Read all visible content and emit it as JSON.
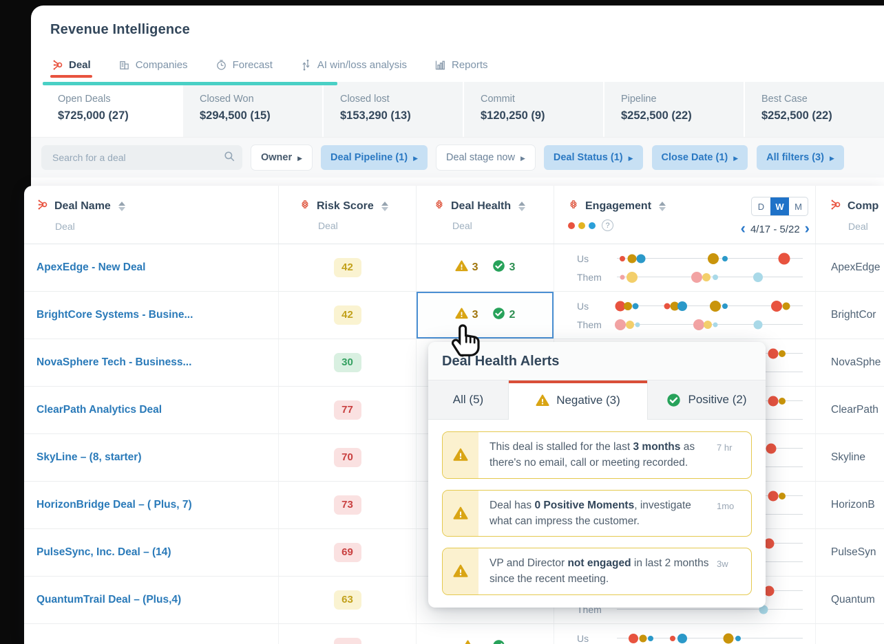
{
  "app": {
    "title": "Revenue Intelligence"
  },
  "nav": {
    "tabs": [
      {
        "label": "Deal",
        "icon": "sprocket",
        "active": true
      },
      {
        "label": "Companies",
        "icon": "building",
        "active": false
      },
      {
        "label": "Forecast",
        "icon": "clock",
        "active": false
      },
      {
        "label": "AI win/loss analysis",
        "icon": "updown",
        "active": false
      },
      {
        "label": "Reports",
        "icon": "barchart",
        "active": false
      }
    ]
  },
  "summary_cards": [
    {
      "label": "Open Deals",
      "value": "$725,000 (27)",
      "active": true
    },
    {
      "label": "Closed Won",
      "value": "$294,500 (15)",
      "active": false
    },
    {
      "label": "Closed lost",
      "value": "$153,290 (13)",
      "active": false
    },
    {
      "label": "Commit",
      "value": "$120,250 (9)",
      "active": false
    },
    {
      "label": "Pipeline",
      "value": "$252,500 (22)",
      "active": false
    },
    {
      "label": "Best Case",
      "value": "$252,500 (22)",
      "active": false
    }
  ],
  "filters": {
    "search_placeholder": "Search for a deal",
    "buttons": [
      {
        "label": "Owner",
        "style": "plain"
      },
      {
        "label": "Deal Pipeline (1)",
        "style": "active"
      },
      {
        "label": "Deal stage now",
        "style": "muted"
      },
      {
        "label": "Deal Status (1)",
        "style": "active"
      },
      {
        "label": "Close Date (1)",
        "style": "active"
      },
      {
        "label": "All filters (3)",
        "style": "active"
      }
    ]
  },
  "table": {
    "columns": {
      "deal_name": {
        "title": "Deal Name",
        "subtitle": "Deal"
      },
      "risk_score": {
        "title": "Risk Score",
        "subtitle": "Deal"
      },
      "deal_health": {
        "title": "Deal Health",
        "subtitle": "Deal"
      },
      "engagement": {
        "title": "Engagement",
        "date_range": "4/17 - 5/22",
        "period_options": [
          "D",
          "W",
          "M"
        ],
        "period_selected": "W"
      },
      "company": {
        "title": "Comp",
        "subtitle": "Deal"
      }
    },
    "rows": [
      {
        "name": "ApexEdge - New Deal",
        "risk": "42",
        "risk_tone": "yellow",
        "health_neg": "3",
        "health_pos": "3",
        "company": "ApexEdge",
        "selected": false,
        "us": [
          [
            3,
            "r",
            8
          ],
          [
            8,
            "o",
            13
          ],
          [
            13,
            "b",
            13
          ],
          [
            52,
            "o",
            16
          ],
          [
            58,
            "b",
            8
          ],
          [
            90,
            "r",
            17
          ]
        ],
        "them": [
          [
            3,
            "p",
            7
          ],
          [
            8,
            "y",
            16
          ],
          [
            43,
            "p",
            16
          ],
          [
            48,
            "y",
            12
          ],
          [
            53,
            "l",
            8
          ],
          [
            76,
            "l",
            14
          ]
        ]
      },
      {
        "name": "BrightCore Systems - Busine...",
        "risk": "42",
        "risk_tone": "yellow",
        "health_neg": "3",
        "health_pos": "2",
        "company": "BrightCor",
        "selected": true,
        "us": [
          [
            2,
            "r",
            15
          ],
          [
            6,
            "o",
            12
          ],
          [
            10,
            "b",
            9
          ],
          [
            27,
            "r",
            9
          ],
          [
            31,
            "o",
            13
          ],
          [
            35,
            "b",
            14
          ],
          [
            53,
            "o",
            16
          ],
          [
            58,
            "b",
            8
          ],
          [
            86,
            "r",
            16
          ],
          [
            91,
            "o",
            11
          ]
        ],
        "them": [
          [
            2,
            "p",
            16
          ],
          [
            7,
            "y",
            12
          ],
          [
            11,
            "l",
            7
          ],
          [
            44,
            "p",
            16
          ],
          [
            49,
            "y",
            12
          ],
          [
            53,
            "l",
            7
          ],
          [
            76,
            "l",
            13
          ]
        ]
      },
      {
        "name": "NovaSphere Tech - Business...",
        "risk": "30",
        "risk_tone": "green",
        "health_neg": null,
        "health_pos": null,
        "company": "NovaSphe",
        "selected": false,
        "us": [
          [
            84,
            "r",
            15
          ],
          [
            89,
            "o",
            10
          ]
        ],
        "them": []
      },
      {
        "name": "ClearPath Analytics Deal",
        "risk": "77",
        "risk_tone": "red",
        "health_neg": null,
        "health_pos": null,
        "company": "ClearPath",
        "selected": false,
        "us": [
          [
            84,
            "r",
            15
          ],
          [
            89,
            "o",
            10
          ]
        ],
        "them": []
      },
      {
        "name": "SkyLine – (8, starter)",
        "risk": "70",
        "risk_tone": "red",
        "health_neg": null,
        "health_pos": null,
        "company": "Skyline",
        "selected": false,
        "us": [
          [
            83,
            "r",
            15
          ]
        ],
        "them": []
      },
      {
        "name": "HorizonBridge Deal – ( Plus, 7)",
        "risk": "73",
        "risk_tone": "red",
        "health_neg": null,
        "health_pos": null,
        "company": "HorizonB",
        "selected": false,
        "us": [
          [
            84,
            "r",
            15
          ],
          [
            89,
            "o",
            10
          ]
        ],
        "them": []
      },
      {
        "name": "PulseSync, Inc. Deal – (14)",
        "risk": "69",
        "risk_tone": "red",
        "health_neg": null,
        "health_pos": null,
        "company": "PulseSyn",
        "selected": false,
        "us": [
          [
            82,
            "r",
            15
          ]
        ],
        "them": []
      },
      {
        "name": "QuantumTrail Deal – (Plus,4)",
        "risk": "63",
        "risk_tone": "yellow",
        "health_neg": null,
        "health_pos": null,
        "company": "Quantum",
        "selected": false,
        "us": [
          [
            82,
            "r",
            15
          ]
        ],
        "them": [
          [
            79,
            "l",
            13
          ]
        ]
      },
      {
        "name": "",
        "risk": "",
        "risk_tone": "red",
        "health_neg": "",
        "health_pos": "",
        "company": "",
        "selected": false,
        "us": [
          [
            9,
            "r",
            14
          ],
          [
            14,
            "o",
            11
          ],
          [
            18,
            "b",
            8
          ],
          [
            30,
            "r",
            8
          ],
          [
            35,
            "b",
            14
          ],
          [
            60,
            "o",
            15
          ],
          [
            65,
            "b",
            8
          ]
        ],
        "them": []
      }
    ]
  },
  "popup": {
    "title": "Deal Health Alerts",
    "tabs": [
      {
        "label": "All (5)",
        "icon": null,
        "active": false
      },
      {
        "label": "Negative (3)",
        "icon": "warning",
        "active": true
      },
      {
        "label": "Positive (2)",
        "icon": "check",
        "active": false
      }
    ],
    "alerts": [
      {
        "time": "7 hr",
        "segments": [
          {
            "t": "This deal is stalled for the last "
          },
          {
            "t": "3 months",
            "b": true
          },
          {
            "t": " as there's no email, call or meeting recorded."
          }
        ]
      },
      {
        "time": "1mo",
        "segments": [
          {
            "t": "Deal has "
          },
          {
            "t": "0 Positive Moments",
            "b": true
          },
          {
            "t": ", investigate what can impress the customer."
          }
        ]
      },
      {
        "time": "3w",
        "segments": [
          {
            "t": "VP and Director "
          },
          {
            "t": "not engaged",
            "b": true
          },
          {
            "t": " in last 2 months since the recent meeting."
          }
        ]
      }
    ]
  },
  "colors": {
    "accent_red": "#e8533f",
    "teal_bar": "#49d0c5",
    "filter_active_bg": "#c7e0f4",
    "filter_active_text": "#2a78c2",
    "legend_dots": [
      "#e8533f",
      "#e3b321",
      "#2b9fd8"
    ],
    "dot_palette": {
      "r": "#e8533f",
      "o": "#c9940b",
      "b": "#2b99c9",
      "p": "#f2a3a3",
      "y": "#f3cf6b",
      "l": "#a9d9e8"
    },
    "warning": "#d9a514",
    "positive": "#27a25a"
  }
}
